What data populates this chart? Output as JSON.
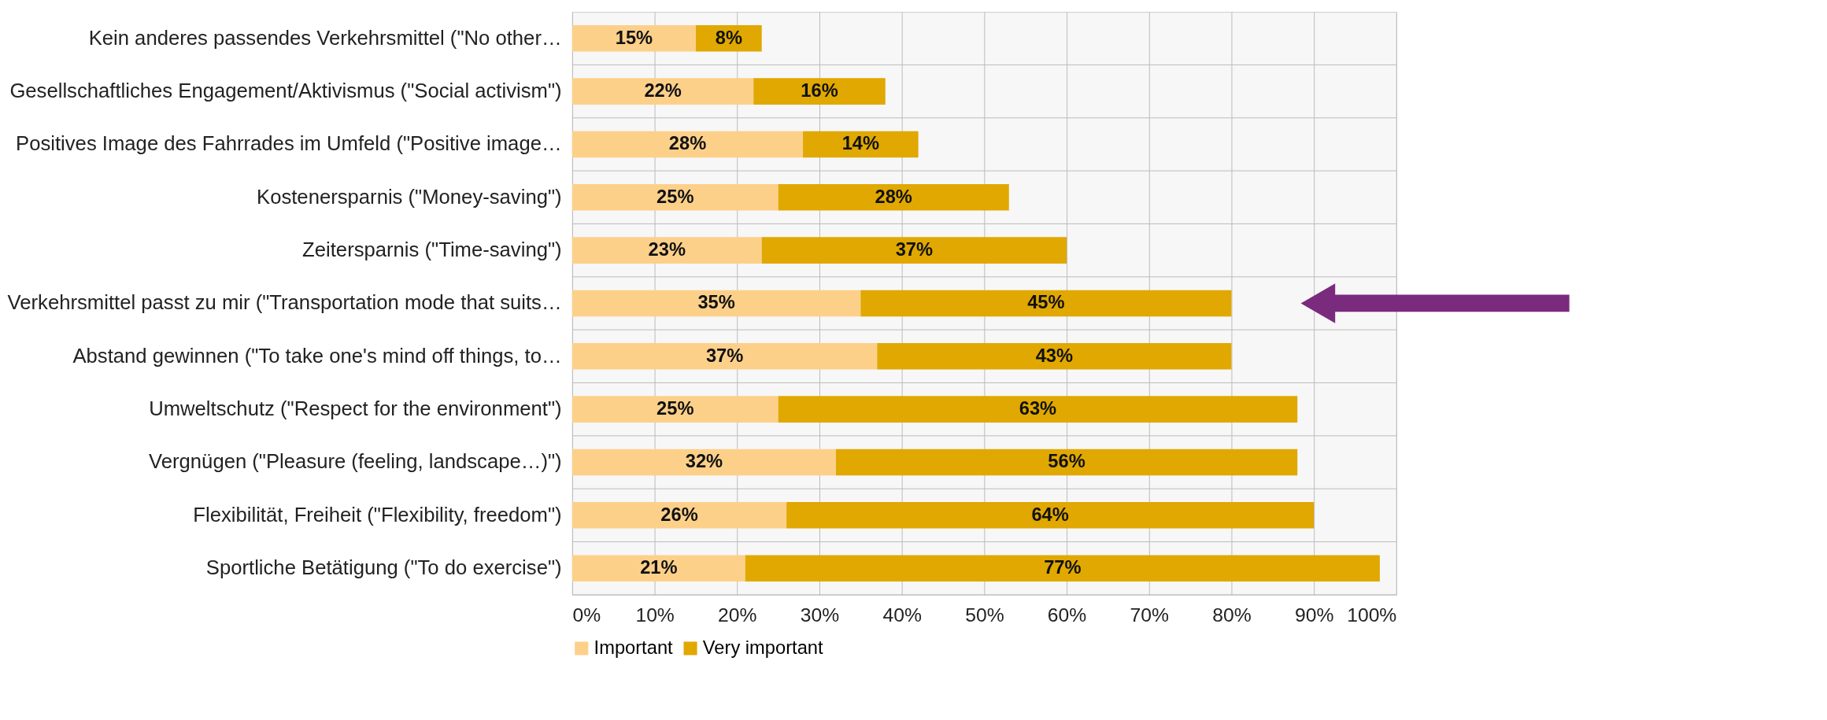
{
  "chart_data": {
    "type": "bar",
    "orientation": "horizontal",
    "stacked": true,
    "categories": [
      "Kein anderes passendes Verkehrsmittel (\"No other…",
      "Gesellschaftliches Engagement/Aktivismus (\"Social activism\")",
      "Positives Image des Fahrrades im Umfeld (\"Positive image…",
      "Kostenersparnis (\"Money-saving\")",
      "Zeitersparnis (\"Time-saving\")",
      "Verkehrsmittel passt zu mir (\"Transportation mode that suits…",
      "Abstand gewinnen (\"To take one's mind off things, to…",
      "Umweltschutz (\"Respect for the environment\")",
      "Vergnügen (\"Pleasure (feeling, landscape…)\")",
      "Flexibilität, Freiheit (\"Flexibility, freedom\")",
      "Sportliche Betätigung (\"To do exercise\")"
    ],
    "series": [
      {
        "name": "Important",
        "color": "#fdd08a",
        "values": [
          15,
          22,
          28,
          25,
          23,
          35,
          37,
          25,
          32,
          26,
          21
        ]
      },
      {
        "name": "Very important",
        "color": "#e0a800",
        "values": [
          8,
          16,
          14,
          28,
          37,
          45,
          43,
          63,
          56,
          64,
          77
        ]
      }
    ],
    "xlim": [
      0,
      100
    ],
    "xticks": [
      {
        "value": 0,
        "label": "0%"
      },
      {
        "value": 10,
        "label": "10%"
      },
      {
        "value": 20,
        "label": "20%"
      },
      {
        "value": 30,
        "label": "30%"
      },
      {
        "value": 40,
        "label": "40%"
      },
      {
        "value": 50,
        "label": "50%"
      },
      {
        "value": 60,
        "label": "60%"
      },
      {
        "value": 70,
        "label": "70%"
      },
      {
        "value": 80,
        "label": "80%"
      },
      {
        "value": 90,
        "label": "90%"
      },
      {
        "value": 100,
        "label": "100%"
      }
    ],
    "value_labels": [
      [
        "15%",
        "22%",
        "28%",
        "25%",
        "23%",
        "35%",
        "37%",
        "25%",
        "32%",
        "26%",
        "21%"
      ],
      [
        "8%",
        "16%",
        "14%",
        "28%",
        "37%",
        "45%",
        "43%",
        "63%",
        "56%",
        "64%",
        "77%"
      ]
    ],
    "grid": true,
    "legend": "bottom"
  }
}
